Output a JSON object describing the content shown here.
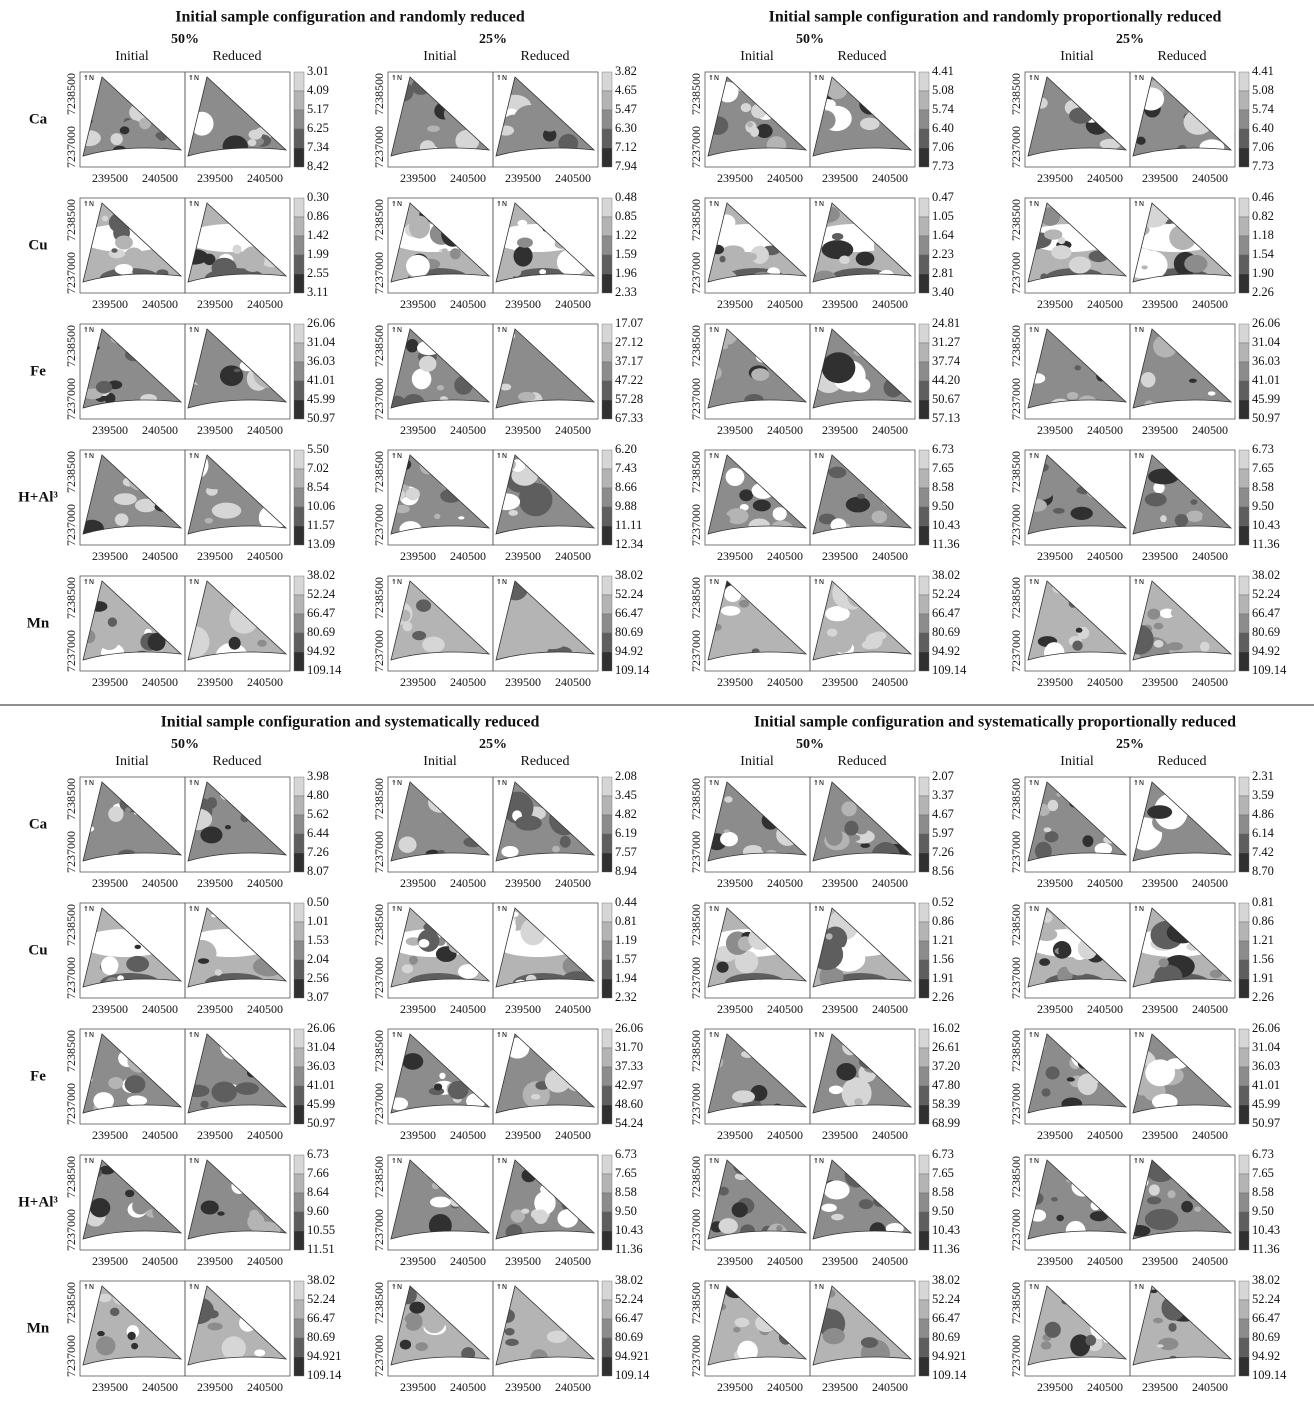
{
  "rows": [
    "Ca",
    "Cu",
    "Fe",
    "H+Al³",
    "Mn"
  ],
  "map_labels": {
    "initial": "Initial",
    "reduced": "Reduced",
    "north": "⇑N"
  },
  "axes": {
    "x_ticks": [
      "239500",
      "240500"
    ],
    "y_ticks": [
      "7238500",
      "7237000"
    ]
  },
  "sections": [
    {
      "title": "Initial sample configuration and randomly reduced",
      "panels": [
        {
          "percent": "50%",
          "legends": [
            [
              "3.01",
              "4.09",
              "5.17",
              "6.25",
              "7.34",
              "8.42"
            ],
            [
              "0.30",
              "0.86",
              "1.42",
              "1.99",
              "2.55",
              "3.11"
            ],
            [
              "26.06",
              "31.04",
              "36.03",
              "41.01",
              "45.99",
              "50.97"
            ],
            [
              "5.50",
              "7.02",
              "8.54",
              "10.06",
              "11.57",
              "13.09"
            ],
            [
              "38.02",
              "52.24",
              "66.47",
              "80.69",
              "94.92",
              "109.14"
            ]
          ]
        },
        {
          "percent": "25%",
          "legends": [
            [
              "3.82",
              "4.65",
              "5.47",
              "6.30",
              "7.12",
              "7.94"
            ],
            [
              "0.48",
              "0.85",
              "1.22",
              "1.59",
              "1.96",
              "2.33"
            ],
            [
              "17.07",
              "27.12",
              "37.17",
              "47.22",
              "57.28",
              "67.33"
            ],
            [
              "6.20",
              "7.43",
              "8.66",
              "9.88",
              "11.11",
              "12.34"
            ],
            [
              "38.02",
              "52.24",
              "66.47",
              "80.69",
              "94.92",
              "109.14"
            ]
          ]
        }
      ]
    },
    {
      "title": "Initial sample configuration and randomly proportionally reduced",
      "panels": [
        {
          "percent": "50%",
          "legends": [
            [
              "4.41",
              "5.08",
              "5.74",
              "6.40",
              "7.06",
              "7.73"
            ],
            [
              "0.47",
              "1.05",
              "1.64",
              "2.23",
              "2.81",
              "3.40"
            ],
            [
              "24.81",
              "31.27",
              "37.74",
              "44.20",
              "50.67",
              "57.13"
            ],
            [
              "6.73",
              "7.65",
              "8.58",
              "9.50",
              "10.43",
              "11.36"
            ],
            [
              "38.02",
              "52.24",
              "66.47",
              "80.69",
              "94.92",
              "109.14"
            ]
          ]
        },
        {
          "percent": "25%",
          "legends": [
            [
              "4.41",
              "5.08",
              "5.74",
              "6.40",
              "7.06",
              "7.73"
            ],
            [
              "0.46",
              "0.82",
              "1.18",
              "1.54",
              "1.90",
              "2.26"
            ],
            [
              "26.06",
              "31.04",
              "36.03",
              "41.01",
              "45.99",
              "50.97"
            ],
            [
              "6.73",
              "7.65",
              "8.58",
              "9.50",
              "10.43",
              "11.36"
            ],
            [
              "38.02",
              "52.24",
              "66.47",
              "80.69",
              "94.92",
              "109.14"
            ]
          ]
        }
      ]
    },
    {
      "title": "Initial sample configuration and systematically reduced",
      "panels": [
        {
          "percent": "50%",
          "legends": [
            [
              "3.98",
              "4.80",
              "5.62",
              "6.44",
              "7.26",
              "8.07"
            ],
            [
              "0.50",
              "1.01",
              "1.53",
              "2.04",
              "2.56",
              "3.07"
            ],
            [
              "26.06",
              "31.04",
              "36.03",
              "41.01",
              "45.99",
              "50.97"
            ],
            [
              "6.73",
              "7.66",
              "8.64",
              "9.60",
              "10.55",
              "11.51"
            ],
            [
              "38.02",
              "52.24",
              "66.47",
              "80.69",
              "94.921",
              "109.14"
            ]
          ]
        },
        {
          "percent": "25%",
          "legends": [
            [
              "2.08",
              "3.45",
              "4.82",
              "6.19",
              "7.57",
              "8.94"
            ],
            [
              "0.44",
              "0.81",
              "1.19",
              "1.57",
              "1.94",
              "2.32"
            ],
            [
              "26.06",
              "31.70",
              "37.33",
              "42.97",
              "48.60",
              "54.24"
            ],
            [
              "6.73",
              "7.65",
              "8.58",
              "9.50",
              "10.43",
              "11.36"
            ],
            [
              "38.02",
              "52.24",
              "66.47",
              "80.69",
              "94.921",
              "109.14"
            ]
          ]
        }
      ]
    },
    {
      "title": "Initial sample configuration and systematically proportionally reduced",
      "panels": [
        {
          "percent": "50%",
          "legends": [
            [
              "2.07",
              "3.37",
              "4.67",
              "5.97",
              "7.26",
              "8.56"
            ],
            [
              "0.52",
              "0.86",
              "1.21",
              "1.56",
              "1.91",
              "2.26"
            ],
            [
              "16.02",
              "26.61",
              "37.20",
              "47.80",
              "58.39",
              "68.99"
            ],
            [
              "6.73",
              "7.65",
              "8.58",
              "9.50",
              "10.43",
              "11.36"
            ],
            [
              "38.02",
              "52.24",
              "66.47",
              "80.69",
              "94.921",
              "109.14"
            ]
          ]
        },
        {
          "percent": "25%",
          "legends": [
            [
              "2.31",
              "3.59",
              "4.86",
              "6.14",
              "7.42",
              "8.70"
            ],
            [
              "0.81",
              "0.86",
              "1.21",
              "1.56",
              "1.91",
              "2.26"
            ],
            [
              "26.06",
              "31.04",
              "36.03",
              "41.01",
              "45.99",
              "50.97"
            ],
            [
              "6.73",
              "7.65",
              "8.58",
              "9.50",
              "10.43",
              "11.36"
            ],
            [
              "38.02",
              "52.24",
              "66.47",
              "80.69",
              "94.92",
              "109.14"
            ]
          ]
        }
      ]
    }
  ]
}
